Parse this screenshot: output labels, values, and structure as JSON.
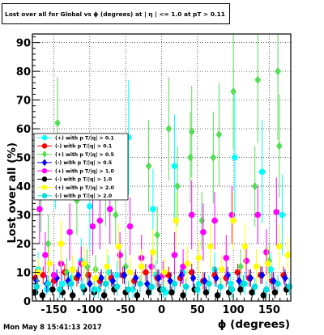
{
  "header": {
    "title": "Lost over all for Global vs ϕ (degrees) at | η | <= 1.0 at pT > 0.11"
  },
  "footer": {
    "timestamp": "Mon May  8 15:41:13 2017"
  },
  "colors": {
    "frame": "#000000",
    "grid": "#000000"
  },
  "chart_data": {
    "type": "scatter",
    "title": "Lost over all for Global vs ϕ (degrees) at | η | <= 1.0 at pT > 0.11",
    "xlabel": "ϕ (degrees)",
    "ylabel": "Lost over all (%)",
    "xlim": [
      -180,
      180
    ],
    "ylim": [
      0,
      93
    ],
    "xticks": [
      -150,
      -100,
      -50,
      0,
      50,
      100,
      150
    ],
    "yticks": [
      0,
      10,
      20,
      30,
      40,
      50,
      60,
      70,
      80,
      90
    ],
    "grid": true,
    "legend_position": "left-middle",
    "series": [
      {
        "name": "(+) with p T/|q| > 0.1",
        "color": "#00ffff",
        "marker": "circle",
        "points": [
          [
            -172,
            11,
            6
          ],
          [
            -160,
            4,
            2
          ],
          [
            -148,
            42,
            10
          ],
          [
            -138,
            6,
            3
          ],
          [
            -125,
            8,
            4
          ],
          [
            -112,
            14,
            8
          ],
          [
            -100,
            33,
            15
          ],
          [
            -88,
            4,
            3
          ],
          [
            -74,
            10,
            6
          ],
          [
            -62,
            9,
            5
          ],
          [
            -46,
            57,
            20
          ],
          [
            -40,
            4,
            3
          ],
          [
            -12,
            32,
            14
          ],
          [
            -8,
            9,
            5
          ],
          [
            6,
            3,
            2
          ],
          [
            18,
            47,
            18
          ],
          [
            30,
            10,
            5
          ],
          [
            52,
            6,
            4
          ],
          [
            74,
            11,
            6
          ],
          [
            96,
            6,
            4
          ],
          [
            102,
            50,
            22
          ],
          [
            116,
            6,
            4
          ],
          [
            140,
            45,
            18
          ],
          [
            152,
            11,
            6
          ],
          [
            168,
            30,
            14
          ]
        ]
      },
      {
        "name": "(-) with p T/|q| > 0.1",
        "color": "#ff0000",
        "marker": "circle",
        "points": [
          [
            -176,
            8,
            3
          ],
          [
            -165,
            9,
            3
          ],
          [
            -150,
            7,
            3
          ],
          [
            -135,
            10,
            3
          ],
          [
            -118,
            8,
            3
          ],
          [
            -102,
            9,
            3
          ],
          [
            -86,
            7,
            3
          ],
          [
            -70,
            8,
            3
          ],
          [
            -54,
            9,
            3
          ],
          [
            -38,
            7,
            3
          ],
          [
            -22,
            10,
            3
          ],
          [
            -6,
            8,
            3
          ],
          [
            10,
            9,
            3
          ],
          [
            26,
            8,
            3
          ],
          [
            42,
            10,
            3
          ],
          [
            58,
            7,
            3
          ],
          [
            74,
            9,
            3
          ],
          [
            90,
            8,
            3
          ],
          [
            106,
            10,
            3
          ],
          [
            122,
            8,
            3
          ],
          [
            138,
            9,
            3
          ],
          [
            154,
            7,
            3
          ],
          [
            170,
            9,
            3
          ]
        ]
      },
      {
        "name": "(+) with p T/|q| > 0.5",
        "color": "#55dd55",
        "marker": "diamond",
        "points": [
          [
            -168,
            36,
            12
          ],
          [
            -158,
            20,
            10
          ],
          [
            -145,
            62,
            16
          ],
          [
            -132,
            10,
            5
          ],
          [
            -118,
            35,
            12
          ],
          [
            -104,
            12,
            6
          ],
          [
            -92,
            11,
            5
          ],
          [
            -78,
            40,
            14
          ],
          [
            -64,
            30,
            10
          ],
          [
            -50,
            12,
            6
          ],
          [
            -18,
            47,
            16
          ],
          [
            -6,
            23,
            10
          ],
          [
            10,
            60,
            18
          ],
          [
            22,
            40,
            14
          ],
          [
            40,
            50,
            16
          ],
          [
            42,
            59,
            16
          ],
          [
            56,
            28,
            10
          ],
          [
            72,
            50,
            16
          ],
          [
            80,
            58,
            18
          ],
          [
            100,
            73,
            20
          ],
          [
            110,
            12,
            6
          ],
          [
            130,
            40,
            14
          ],
          [
            134,
            77,
            22
          ],
          [
            150,
            14,
            6
          ],
          [
            162,
            80,
            24
          ],
          [
            164,
            54,
            18
          ]
        ]
      },
      {
        "name": "(-) with p T/|q| > 0.5",
        "color": "#0000ff",
        "marker": "diamond",
        "points": [
          [
            -174,
            7,
            3
          ],
          [
            -160,
            6,
            3
          ],
          [
            -146,
            8,
            3
          ],
          [
            -130,
            7,
            3
          ],
          [
            -116,
            9,
            3
          ],
          [
            -100,
            6,
            3
          ],
          [
            -84,
            8,
            3
          ],
          [
            -68,
            7,
            3
          ],
          [
            -52,
            9,
            3
          ],
          [
            -36,
            8,
            3
          ],
          [
            -20,
            6,
            3
          ],
          [
            -4,
            8,
            3
          ],
          [
            12,
            7,
            3
          ],
          [
            28,
            9,
            3
          ],
          [
            44,
            8,
            3
          ],
          [
            60,
            7,
            3
          ],
          [
            76,
            8,
            3
          ],
          [
            92,
            9,
            3
          ],
          [
            108,
            7,
            3
          ],
          [
            124,
            8,
            3
          ],
          [
            140,
            9,
            3
          ],
          [
            156,
            7,
            3
          ],
          [
            172,
            8,
            3
          ]
        ]
      },
      {
        "name": "(+) with p T/|q| > 1.0",
        "color": "#ff00ff",
        "marker": "circle",
        "points": [
          [
            -170,
            32,
            12
          ],
          [
            -162,
            16,
            8
          ],
          [
            -150,
            9,
            4
          ],
          [
            -140,
            13,
            6
          ],
          [
            -128,
            24,
            10
          ],
          [
            -112,
            13,
            6
          ],
          [
            -96,
            26,
            10
          ],
          [
            -86,
            28,
            10
          ],
          [
            -72,
            32,
            12
          ],
          [
            -58,
            16,
            8
          ],
          [
            -44,
            26,
            10
          ],
          [
            -28,
            15,
            8
          ],
          [
            -14,
            12,
            6
          ],
          [
            2,
            9,
            5
          ],
          [
            18,
            16,
            8
          ],
          [
            30,
            12,
            6
          ],
          [
            42,
            30,
            12
          ],
          [
            58,
            24,
            10
          ],
          [
            74,
            28,
            10
          ],
          [
            90,
            15,
            8
          ],
          [
            98,
            30,
            10
          ],
          [
            118,
            14,
            6
          ],
          [
            134,
            30,
            10
          ],
          [
            146,
            17,
            8
          ],
          [
            160,
            31,
            12
          ]
        ]
      },
      {
        "name": "(-) with p T/|q| > 1.0",
        "color": "#000000",
        "marker": "circle",
        "points": [
          [
            -176,
            3,
            2
          ],
          [
            -166,
            2,
            2
          ],
          [
            -152,
            4,
            2
          ],
          [
            -138,
            3,
            2
          ],
          [
            -124,
            2,
            2
          ],
          [
            -108,
            4,
            2
          ],
          [
            -94,
            3,
            2
          ],
          [
            -80,
            2,
            2
          ],
          [
            -66,
            4,
            2
          ],
          [
            -50,
            3,
            2
          ],
          [
            -34,
            2,
            2
          ],
          [
            -18,
            3,
            2
          ],
          [
            -2,
            4,
            2
          ],
          [
            14,
            3,
            2
          ],
          [
            30,
            2,
            2
          ],
          [
            46,
            4,
            2
          ],
          [
            62,
            3,
            2
          ],
          [
            78,
            2,
            2
          ],
          [
            94,
            3,
            2
          ],
          [
            110,
            4,
            2
          ],
          [
            126,
            3,
            2
          ],
          [
            142,
            2,
            2
          ],
          [
            158,
            3,
            2
          ],
          [
            174,
            4,
            2
          ]
        ]
      },
      {
        "name": "(+) with p T/|q| > 2.0",
        "color": "#ffff00",
        "marker": "circle",
        "points": [
          [
            -172,
            10,
            5
          ],
          [
            -156,
            13,
            6
          ],
          [
            -140,
            20,
            8
          ],
          [
            -124,
            11,
            5
          ],
          [
            -108,
            13,
            6
          ],
          [
            -92,
            8,
            4
          ],
          [
            -76,
            12,
            6
          ],
          [
            -60,
            19,
            8
          ],
          [
            -44,
            10,
            5
          ],
          [
            -28,
            12,
            6
          ],
          [
            -12,
            17,
            8
          ],
          [
            4,
            10,
            5
          ],
          [
            20,
            28,
            10
          ],
          [
            36,
            13,
            6
          ],
          [
            52,
            15,
            6
          ],
          [
            68,
            19,
            8
          ],
          [
            84,
            11,
            5
          ],
          [
            100,
            28,
            10
          ],
          [
            116,
            19,
            8
          ],
          [
            132,
            12,
            6
          ],
          [
            148,
            13,
            6
          ],
          [
            164,
            19,
            8
          ],
          [
            176,
            16,
            6
          ]
        ]
      },
      {
        "name": "(-) with p T/|q| > 2.0",
        "color": "#00dddd",
        "marker": "circle",
        "points": [
          [
            -174,
            5,
            3
          ],
          [
            -158,
            6,
            3
          ],
          [
            -142,
            4,
            3
          ],
          [
            -126,
            6,
            3
          ],
          [
            -110,
            5,
            3
          ],
          [
            -94,
            4,
            3
          ],
          [
            -78,
            6,
            3
          ],
          [
            -62,
            5,
            3
          ],
          [
            -46,
            4,
            3
          ],
          [
            -30,
            6,
            3
          ],
          [
            -14,
            5,
            3
          ],
          [
            2,
            4,
            3
          ],
          [
            18,
            6,
            3
          ],
          [
            34,
            5,
            3
          ],
          [
            50,
            4,
            3
          ],
          [
            66,
            6,
            3
          ],
          [
            82,
            5,
            3
          ],
          [
            98,
            4,
            3
          ],
          [
            114,
            6,
            3
          ],
          [
            130,
            5,
            3
          ],
          [
            146,
            4,
            3
          ],
          [
            162,
            6,
            3
          ],
          [
            178,
            5,
            3
          ]
        ]
      }
    ]
  }
}
